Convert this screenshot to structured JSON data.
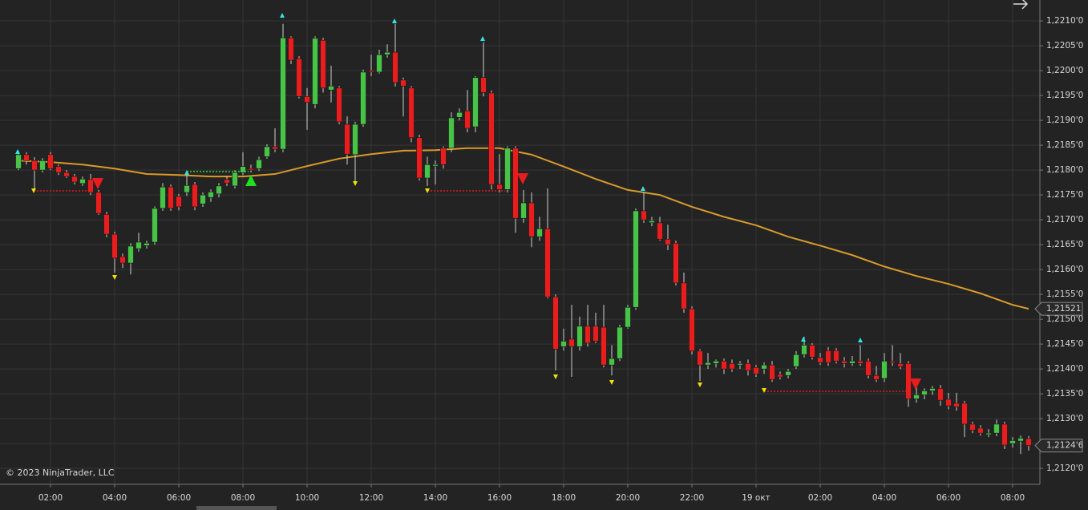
{
  "chart_data": {
    "type": "candlestick",
    "copyright": "© 2023 NinjaTrader, LLC",
    "up_color": "#47c447",
    "down_color": "#e81e1e",
    "ema_color": "#d99a2b",
    "grid": true,
    "xlim": [
      0.425,
      32.85
    ],
    "ylim": [
      1.21168,
      1.22142
    ],
    "xticks": [
      {
        "value": 2,
        "label": "02:00"
      },
      {
        "value": 4,
        "label": "04:00"
      },
      {
        "value": 6,
        "label": "06:00"
      },
      {
        "value": 8,
        "label": "08:00"
      },
      {
        "value": 10,
        "label": "10:00"
      },
      {
        "value": 12,
        "label": "12:00"
      },
      {
        "value": 14,
        "label": "14:00"
      },
      {
        "value": 16,
        "label": "16:00"
      },
      {
        "value": 18,
        "label": "18:00"
      },
      {
        "value": 20,
        "label": "20:00"
      },
      {
        "value": 22,
        "label": "22:00"
      },
      {
        "value": 24,
        "label": "19 окт"
      },
      {
        "value": 26,
        "label": "02:00"
      },
      {
        "value": 28,
        "label": "04:00"
      },
      {
        "value": 30,
        "label": "06:00"
      },
      {
        "value": 32,
        "label": "08:00"
      }
    ],
    "yticks": [
      {
        "value": 1.221,
        "label": "1,2210'0"
      },
      {
        "value": 1.2205,
        "label": "1,2205'0"
      },
      {
        "value": 1.22,
        "label": "1,2200'0"
      },
      {
        "value": 1.2195,
        "label": "1,2195'0"
      },
      {
        "value": 1.219,
        "label": "1,2190'0"
      },
      {
        "value": 1.2185,
        "label": "1,2185'0"
      },
      {
        "value": 1.218,
        "label": "1,2180'0"
      },
      {
        "value": 1.2175,
        "label": "1,2175'0"
      },
      {
        "value": 1.217,
        "label": "1,2170'0"
      },
      {
        "value": 1.2165,
        "label": "1,2165'0"
      },
      {
        "value": 1.216,
        "label": "1,2160'0"
      },
      {
        "value": 1.2155,
        "label": "1,2155'0"
      },
      {
        "value": 1.215,
        "label": "1,2150'0"
      },
      {
        "value": 1.2145,
        "label": "1,2145'0"
      },
      {
        "value": 1.214,
        "label": "1,2140'0"
      },
      {
        "value": 1.2135,
        "label": "1,2135'0"
      },
      {
        "value": 1.213,
        "label": "1,2130'0"
      },
      {
        "value": 1.2125,
        "label": "1,2125'0"
      },
      {
        "value": 1.212,
        "label": "1,2120'0"
      }
    ],
    "x": [
      1,
      1.25,
      1.5,
      1.75,
      2,
      2.25,
      2.5,
      2.75,
      3,
      3.25,
      3.5,
      3.75,
      4,
      4.25,
      4.5,
      4.75,
      5,
      5.25,
      5.5,
      5.75,
      6,
      6.25,
      6.5,
      6.75,
      7,
      7.25,
      7.5,
      7.75,
      8,
      8.25,
      8.5,
      8.75,
      9,
      9.25,
      9.5,
      9.75,
      10,
      10.25,
      10.5,
      10.75,
      11,
      11.25,
      11.5,
      11.75,
      12,
      12.25,
      12.5,
      12.75,
      13,
      13.25,
      13.5,
      13.75,
      14,
      14.25,
      14.5,
      14.75,
      15,
      15.25,
      15.5,
      15.75,
      16,
      16.25,
      16.5,
      16.75,
      17,
      17.25,
      17.5,
      17.75,
      18,
      18.25,
      18.5,
      18.75,
      19,
      19.25,
      19.5,
      19.75,
      20,
      20.25,
      20.5,
      20.75,
      21,
      21.25,
      21.5,
      21.75,
      22,
      22.25,
      22.5,
      22.75,
      23,
      23.25,
      23.5,
      23.75,
      24,
      24.25,
      24.5,
      24.75,
      25,
      25.25,
      25.5,
      25.75,
      26,
      26.25,
      26.5,
      26.75,
      27,
      27.25,
      27.5,
      27.75,
      28,
      28.25,
      28.5,
      28.75,
      29,
      29.25,
      29.5,
      29.75,
      30,
      30.25,
      30.5,
      30.75,
      31,
      31.25,
      31.5,
      31.75,
      32,
      32.25,
      32.5
    ],
    "ohlc": [
      [
        1.21803,
        1.21839,
        1.218,
        1.21831
      ],
      [
        1.21831,
        1.21836,
        1.21811,
        1.21819
      ],
      [
        1.21819,
        1.21826,
        1.21761,
        1.218
      ],
      [
        1.218,
        1.21824,
        1.21795,
        1.21819
      ],
      [
        1.21831,
        1.21836,
        1.218,
        1.21803
      ],
      [
        1.21807,
        1.21811,
        1.2179,
        1.21795
      ],
      [
        1.21795,
        1.218,
        1.21784,
        1.21787
      ],
      [
        1.21787,
        1.21792,
        1.21771,
        1.21776
      ],
      [
        1.21773,
        1.21787,
        1.21768,
        1.21782
      ],
      [
        1.21781,
        1.21792,
        1.2175,
        1.21755
      ],
      [
        1.21755,
        1.2176,
        1.2171,
        1.21713
      ],
      [
        1.21711,
        1.21716,
        1.21665,
        1.21671
      ],
      [
        1.21671,
        1.21676,
        1.21594,
        1.21623
      ],
      [
        1.21626,
        1.21632,
        1.21603,
        1.21613
      ],
      [
        1.21613,
        1.21653,
        1.2159,
        1.21647
      ],
      [
        1.21642,
        1.21674,
        1.21636,
        1.21655
      ],
      [
        1.21648,
        1.21658,
        1.21642,
        1.21653
      ],
      [
        1.21655,
        1.21727,
        1.2165,
        1.21723
      ],
      [
        1.21723,
        1.21774,
        1.21718,
        1.21766
      ],
      [
        1.21766,
        1.21771,
        1.21718,
        1.21723
      ],
      [
        1.21747,
        1.21752,
        1.21719,
        1.21726
      ],
      [
        1.21755,
        1.2179,
        1.21748,
        1.21769
      ],
      [
        1.21771,
        1.21776,
        1.21719,
        1.21726
      ],
      [
        1.21732,
        1.21755,
        1.21726,
        1.2175
      ],
      [
        1.21745,
        1.21761,
        1.21736,
        1.21756
      ],
      [
        1.21752,
        1.21774,
        1.21745,
        1.21768
      ],
      [
        1.21781,
        1.21787,
        1.21768,
        1.21774
      ],
      [
        1.21768,
        1.218,
        1.21763,
        1.21795
      ],
      [
        1.21795,
        1.21836,
        1.2179,
        1.21807
      ],
      [
        1.21803,
        1.21811,
        1.21795,
        1.218
      ],
      [
        1.21803,
        1.21827,
        1.21798,
        1.21821
      ],
      [
        1.21827,
        1.21852,
        1.21823,
        1.21847
      ],
      [
        1.21847,
        1.21884,
        1.21836,
        1.21842
      ],
      [
        1.21842,
        1.22094,
        1.21836,
        1.22066
      ],
      [
        1.22066,
        1.22069,
        1.22013,
        1.22021
      ],
      [
        1.22024,
        1.22029,
        1.21944,
        1.21948
      ],
      [
        1.21948,
        1.21965,
        1.21881,
        1.21936
      ],
      [
        1.21932,
        1.22069,
        1.21924,
        1.22065
      ],
      [
        1.22061,
        1.22066,
        1.21956,
        1.21965
      ],
      [
        1.21961,
        1.2201,
        1.21936,
        1.21969
      ],
      [
        1.21965,
        1.21969,
        1.21892,
        1.21897
      ],
      [
        1.21892,
        1.21908,
        1.21811,
        1.21832
      ],
      [
        1.21831,
        1.21897,
        1.21777,
        1.21892
      ],
      [
        1.21892,
        1.22002,
        1.21887,
        1.21997
      ],
      [
        1.22,
        1.22032,
        1.21989,
        1.21997
      ],
      [
        1.21997,
        1.22042,
        1.21994,
        1.22032
      ],
      [
        1.22032,
        1.22053,
        1.22026,
        1.22037
      ],
      [
        1.22037,
        1.22094,
        1.21968,
        1.21976
      ],
      [
        1.21981,
        1.21986,
        1.21908,
        1.21969
      ],
      [
        1.21965,
        1.21969,
        1.21856,
        1.21865
      ],
      [
        1.21865,
        1.21871,
        1.21779,
        1.21784
      ],
      [
        1.21784,
        1.21827,
        1.21768,
        1.21811
      ],
      [
        1.21808,
        1.21819,
        1.21771,
        1.21811
      ],
      [
        1.21844,
        1.21848,
        1.21803,
        1.21811
      ],
      [
        1.21844,
        1.21916,
        1.21836,
        1.21905
      ],
      [
        1.21906,
        1.21924,
        1.219,
        1.21916
      ],
      [
        1.21919,
        1.21961,
        1.21876,
        1.21884
      ],
      [
        1.21887,
        1.21989,
        1.21876,
        1.21986
      ],
      [
        1.21986,
        1.22057,
        1.21948,
        1.21956
      ],
      [
        1.21955,
        1.2196,
        1.21761,
        1.21771
      ],
      [
        1.21771,
        1.21832,
        1.21755,
        1.21761
      ],
      [
        1.21761,
        1.21848,
        1.21755,
        1.21844
      ],
      [
        1.21844,
        1.21848,
        1.21674,
        1.21703
      ],
      [
        1.21703,
        1.2176,
        1.21694,
        1.21734
      ],
      [
        1.21734,
        1.21755,
        1.21645,
        1.21666
      ],
      [
        1.21666,
        1.21706,
        1.21658,
        1.21682
      ],
      [
        1.21682,
        1.21763,
        1.21542,
        1.21545
      ],
      [
        1.21545,
        1.2155,
        1.21397,
        1.2144
      ],
      [
        1.21445,
        1.21481,
        1.21437,
        1.21456
      ],
      [
        1.2146,
        1.21529,
        1.21384,
        1.21445
      ],
      [
        1.21445,
        1.21505,
        1.21437,
        1.21486
      ],
      [
        1.21486,
        1.21529,
        1.21445,
        1.21452
      ],
      [
        1.21486,
        1.21513,
        1.21452,
        1.21456
      ],
      [
        1.21484,
        1.21529,
        1.21403,
        1.21408
      ],
      [
        1.21408,
        1.21448,
        1.21387,
        1.21421
      ],
      [
        1.21421,
        1.21489,
        1.21416,
        1.21484
      ],
      [
        1.21484,
        1.21529,
        1.21481,
        1.21524
      ],
      [
        1.21524,
        1.21723,
        1.21519,
        1.21718
      ],
      [
        1.21718,
        1.21755,
        1.21694,
        1.217
      ],
      [
        1.21694,
        1.21706,
        1.21687,
        1.21698
      ],
      [
        1.21694,
        1.21706,
        1.21658,
        1.21661
      ],
      [
        1.21661,
        1.2169,
        1.21639,
        1.2165
      ],
      [
        1.21653,
        1.21658,
        1.21568,
        1.21573
      ],
      [
        1.21573,
        1.21594,
        1.21513,
        1.21521
      ],
      [
        1.21521,
        1.21526,
        1.21429,
        1.21436
      ],
      [
        1.21436,
        1.2144,
        1.21376,
        1.21408
      ],
      [
        1.21408,
        1.21432,
        1.214,
        1.21413
      ],
      [
        1.21411,
        1.21419,
        1.21403,
        1.21416
      ],
      [
        1.21416,
        1.21421,
        1.2139,
        1.214
      ],
      [
        1.21411,
        1.21419,
        1.21394,
        1.214
      ],
      [
        1.21408,
        1.21416,
        1.214,
        1.21411
      ],
      [
        1.21411,
        1.21419,
        1.21387,
        1.21397
      ],
      [
        1.21403,
        1.21408,
        1.21384,
        1.2139
      ],
      [
        1.214,
        1.21413,
        1.2139,
        1.21408
      ],
      [
        1.21408,
        1.21416,
        1.21374,
        1.21379
      ],
      [
        1.21389,
        1.21395,
        1.21379,
        1.21384
      ],
      [
        1.21387,
        1.214,
        1.21381,
        1.21395
      ],
      [
        1.21405,
        1.21436,
        1.214,
        1.21429
      ],
      [
        1.21429,
        1.21465,
        1.21423,
        1.21448
      ],
      [
        1.21448,
        1.21452,
        1.21419,
        1.21424
      ],
      [
        1.21423,
        1.21432,
        1.21408,
        1.21413
      ],
      [
        1.21437,
        1.21444,
        1.21406,
        1.21413
      ],
      [
        1.21437,
        1.21442,
        1.21411,
        1.21416
      ],
      [
        1.21416,
        1.21424,
        1.21403,
        1.21411
      ],
      [
        1.21411,
        1.21426,
        1.21406,
        1.21416
      ],
      [
        1.21416,
        1.21448,
        1.21406,
        1.21411
      ],
      [
        1.21416,
        1.21421,
        1.21381,
        1.21387
      ],
      [
        1.21387,
        1.21406,
        1.21374,
        1.21379
      ],
      [
        1.21381,
        1.21432,
        1.21374,
        1.21416
      ],
      [
        1.21416,
        1.21448,
        1.21406,
        1.21413
      ],
      [
        1.21411,
        1.21432,
        1.214,
        1.21405
      ],
      [
        1.21411,
        1.21416,
        1.21324,
        1.2134
      ],
      [
        1.2134,
        1.21368,
        1.21332,
        1.21348
      ],
      [
        1.21348,
        1.21361,
        1.21339,
        1.21356
      ],
      [
        1.21356,
        1.21366,
        1.21348,
        1.21361
      ],
      [
        1.21361,
        1.21368,
        1.21326,
        1.21337
      ],
      [
        1.21339,
        1.21352,
        1.21319,
        1.21326
      ],
      [
        1.21331,
        1.21352,
        1.21316,
        1.21324
      ],
      [
        1.21331,
        1.21336,
        1.21263,
        1.21289
      ],
      [
        1.21289,
        1.21294,
        1.21271,
        1.21277
      ],
      [
        1.21281,
        1.21287,
        1.21266,
        1.21271
      ],
      [
        1.21268,
        1.21279,
        1.21263,
        1.21271
      ],
      [
        1.21271,
        1.21298,
        1.21265,
        1.21289
      ],
      [
        1.21289,
        1.21294,
        1.21239,
        1.21247
      ],
      [
        1.2125,
        1.21263,
        1.21242,
        1.21256
      ],
      [
        1.21255,
        1.21266,
        1.21229,
        1.21261
      ],
      [
        1.2126,
        1.21265,
        1.21236,
        1.21246
      ]
    ],
    "ema_x": [
      1,
      2,
      3,
      4,
      5,
      6,
      7,
      8,
      9,
      10,
      11,
      12,
      13,
      14,
      15,
      16,
      17,
      18,
      19,
      20,
      21,
      22,
      23,
      24,
      25,
      26,
      27,
      28,
      29,
      30,
      31,
      32,
      32.5
    ],
    "ema_values": [
      1.21819,
      1.21816,
      1.21811,
      1.21803,
      1.21792,
      1.2179,
      1.21787,
      1.21787,
      1.21792,
      1.21808,
      1.21823,
      1.21832,
      1.21839,
      1.2184,
      1.21844,
      1.21844,
      1.21831,
      1.21807,
      1.21782,
      1.2176,
      1.2175,
      1.21726,
      1.21706,
      1.21689,
      1.21666,
      1.21648,
      1.21629,
      1.21606,
      1.21587,
      1.21571,
      1.21552,
      1.21529,
      1.21521
    ],
    "ema_label": "1,21521",
    "last_label": "1,2124'6"
  }
}
